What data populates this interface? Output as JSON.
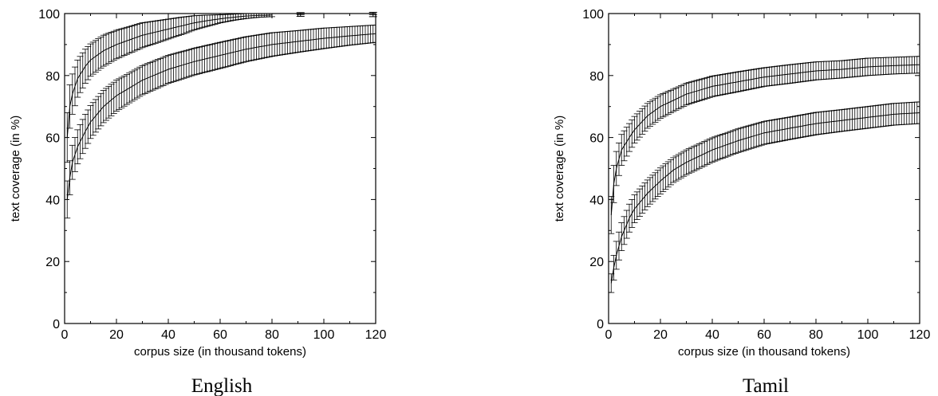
{
  "figure": {
    "panels_caption_note": ""
  },
  "chart_data": [
    {
      "type": "line",
      "caption": "English",
      "xlabel": "corpus size (in thousand tokens)",
      "ylabel": "text coverage (in %)",
      "xlim": [
        0,
        120
      ],
      "ylim": [
        0,
        100
      ],
      "xticks": [
        "0",
        "20",
        "40",
        "60",
        "80",
        "100",
        "120"
      ],
      "yticks": [
        "0",
        "20",
        "40",
        "60",
        "80",
        "100"
      ],
      "grid": false,
      "error_bars": true,
      "series": [
        {
          "x": [
            1,
            2,
            3,
            5,
            8,
            10,
            15,
            20,
            25,
            30,
            35,
            40,
            45,
            50,
            55,
            60,
            65,
            70,
            75,
            80
          ],
          "y": [
            60,
            70,
            74,
            79,
            83,
            85,
            88,
            90,
            91.5,
            93,
            94,
            95,
            96,
            97,
            97.7,
            98.3,
            98.8,
            99.2,
            99.4,
            99.5
          ],
          "err": [
            8,
            7,
            6.5,
            6,
            5.5,
            5.2,
            5,
            4.6,
            4.3,
            4,
            3.6,
            3.2,
            2.8,
            2.3,
            1.8,
            1.3,
            1,
            0.8,
            0.6,
            0.5
          ]
        },
        {
          "x": [
            1,
            2,
            3,
            5,
            8,
            10,
            15,
            20,
            25,
            30,
            40,
            50,
            60,
            70,
            80,
            90,
            100,
            110,
            120
          ],
          "y": [
            40,
            47,
            52,
            57,
            62,
            65,
            70,
            73.5,
            76,
            78.5,
            82,
            84.5,
            86.5,
            88.5,
            90,
            91,
            92,
            92.8,
            93.5
          ],
          "err": [
            6,
            5.5,
            5.5,
            5.5,
            5.5,
            5.3,
            5.2,
            5,
            4.8,
            4.7,
            4.5,
            4.3,
            4.2,
            4,
            3.8,
            3.5,
            3.3,
            3,
            2.8
          ]
        }
      ],
      "isolated_points": [
        {
          "x": 91,
          "y": 99.7,
          "err": 0.6
        },
        {
          "x": 119,
          "y": 99.7,
          "err": 0.7
        }
      ]
    },
    {
      "type": "line",
      "caption": "Tamil",
      "xlabel": "corpus size (in thousand tokens)",
      "ylabel": "text coverage (in %)",
      "xlim": [
        0,
        120
      ],
      "ylim": [
        0,
        100
      ],
      "xticks": [
        "0",
        "20",
        "40",
        "60",
        "80",
        "100",
        "120"
      ],
      "yticks": [
        "0",
        "20",
        "40",
        "60",
        "80",
        "100"
      ],
      "grid": false,
      "error_bars": true,
      "series": [
        {
          "x": [
            1,
            2,
            3,
            5,
            8,
            10,
            15,
            20,
            25,
            30,
            40,
            50,
            60,
            70,
            80,
            90,
            100,
            110,
            120
          ],
          "y": [
            35,
            45,
            50,
            56,
            60,
            62.5,
            67,
            70,
            72,
            74,
            76.5,
            78,
            79.5,
            80.5,
            81.5,
            82,
            82.8,
            83.2,
            83.5
          ],
          "err": [
            6,
            6,
            5.5,
            5,
            4.5,
            4.3,
            4,
            3.8,
            3.6,
            3.5,
            3.3,
            3.2,
            3,
            3,
            2.9,
            2.8,
            2.8,
            2.7,
            2.7
          ]
        },
        {
          "x": [
            1,
            2,
            3,
            5,
            8,
            10,
            15,
            20,
            25,
            30,
            40,
            50,
            60,
            70,
            80,
            90,
            100,
            110,
            120
          ],
          "y": [
            13,
            18,
            22,
            28,
            34,
            37,
            42,
            46,
            49.5,
            52,
            56,
            59,
            61.5,
            63,
            64.5,
            65.5,
            66.5,
            67.5,
            68
          ],
          "err": [
            3,
            4,
            4.5,
            4.5,
            4.5,
            4.5,
            4.3,
            4.2,
            4,
            4,
            3.9,
            3.8,
            3.7,
            3.6,
            3.6,
            3.5,
            3.5,
            3.5,
            3.5
          ]
        }
      ]
    }
  ]
}
